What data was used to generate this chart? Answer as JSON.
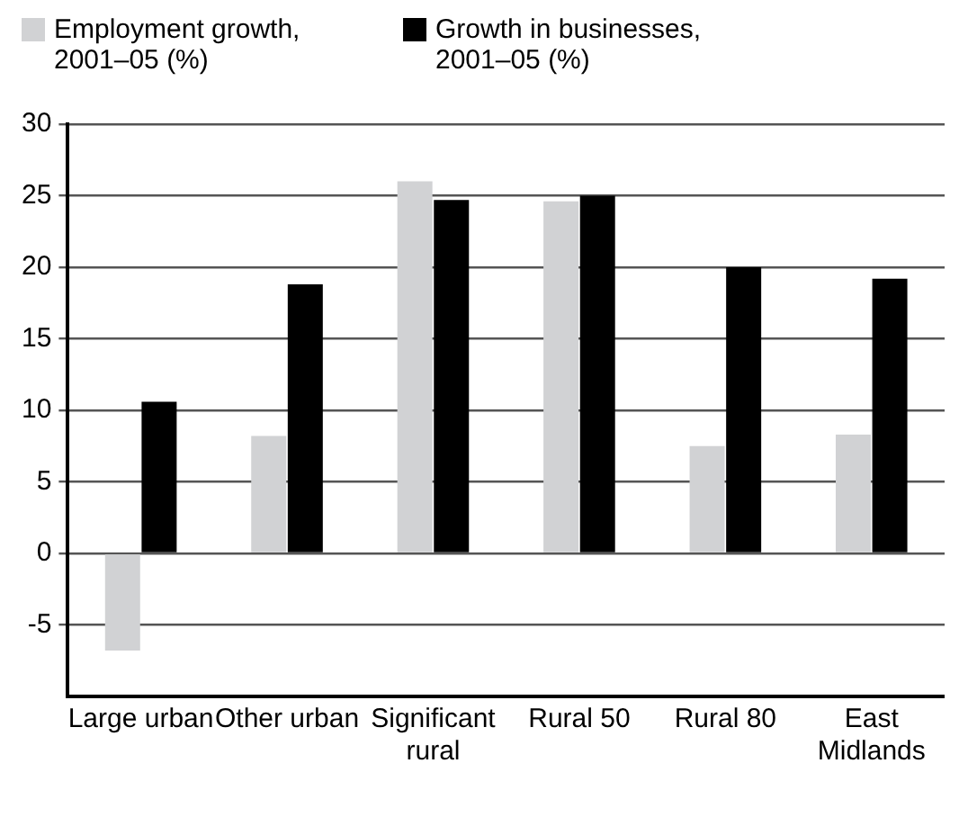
{
  "chart_data": {
    "type": "bar",
    "categories": [
      "Large urban",
      "Other urban",
      "Significant rural",
      "Rural 50",
      "Rural 80",
      "East Midlands"
    ],
    "series": [
      {
        "name": "Employment growth, 2001–05 (%)",
        "color": "#d1d2d4",
        "values": [
          -6.8,
          8.2,
          26,
          24.6,
          7.5,
          8.3
        ]
      },
      {
        "name": "Growth in businesses, 2001–05 (%)",
        "color": "#000000",
        "values": [
          10.6,
          18.8,
          24.7,
          25,
          20,
          19.2
        ]
      }
    ],
    "ylim": [
      -10,
      30
    ],
    "yticks": [
      -5,
      0,
      5,
      10,
      15,
      20,
      25,
      30
    ],
    "grid": "y",
    "legend": "top left"
  }
}
